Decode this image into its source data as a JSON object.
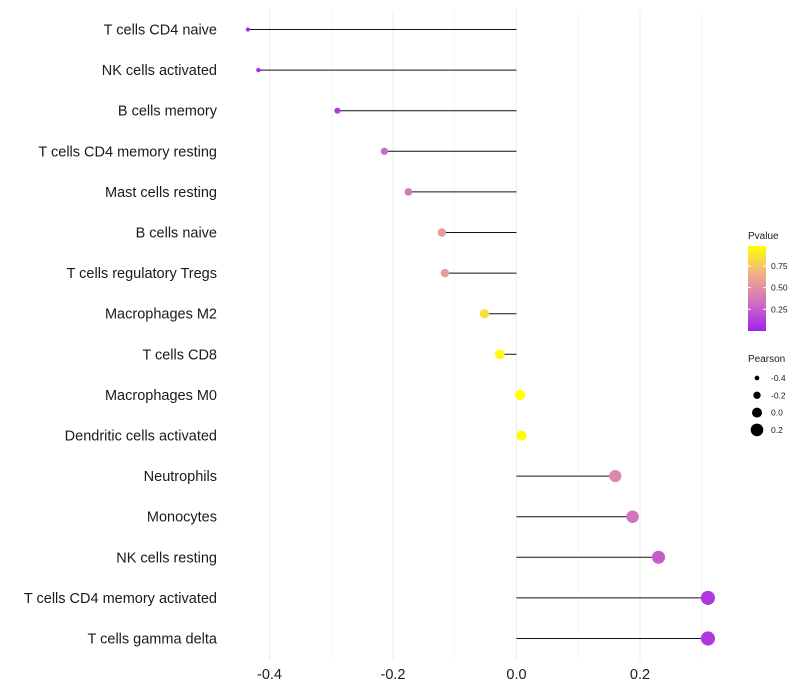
{
  "chart_data": {
    "type": "lollipop",
    "title": "",
    "xlabel": "",
    "ylabel": "",
    "xlim": [
      -0.45,
      0.33
    ],
    "x_ticks": [
      -0.4,
      -0.2,
      0.0,
      0.2
    ],
    "x_tick_labels": [
      "-0.4",
      "-0.2",
      "0.0",
      "0.2"
    ],
    "grid": true,
    "categories": [
      "T cells CD4 naive",
      "NK cells activated",
      "B cells memory",
      "T cells CD4 memory resting",
      "Mast cells resting",
      "B cells naive",
      "T cells regulatory  Tregs ",
      "Macrophages M2",
      "T cells CD8",
      "Macrophages M0",
      "Dendritic cells activated",
      "Neutrophils",
      "Monocytes",
      "NK cells resting",
      "T cells CD4 memory activated",
      "T cells gamma delta"
    ],
    "pearson": [
      -0.435,
      -0.418,
      -0.29,
      -0.214,
      -0.175,
      -0.121,
      -0.116,
      -0.052,
      -0.027,
      0.006,
      0.008,
      0.16,
      0.188,
      0.23,
      0.31,
      0.31
    ],
    "pvalue": [
      0.04,
      0.06,
      0.12,
      0.3,
      0.38,
      0.55,
      0.56,
      0.85,
      0.95,
      0.98,
      0.97,
      0.45,
      0.35,
      0.25,
      0.1,
      0.1
    ],
    "color_legend": {
      "title": "Pvalue",
      "ticks": [
        0.25,
        0.5,
        0.75
      ],
      "tick_labels": [
        "0.25",
        "0.50",
        "0.75"
      ],
      "range": [
        0.0,
        0.98
      ],
      "colors": [
        "#a020f0",
        "#d070c0",
        "#f0b088",
        "#ffff00"
      ]
    },
    "size_legend": {
      "title": "Pearson",
      "values": [
        -0.4,
        -0.2,
        0.0,
        0.2
      ],
      "labels": [
        "-0.4",
        "-0.2",
        "0.0",
        "0.2"
      ]
    },
    "legend_position": "right"
  }
}
